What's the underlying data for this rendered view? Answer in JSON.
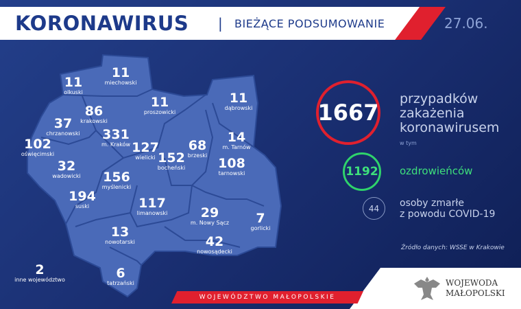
{
  "header": {
    "title": "KORONAWIRUS",
    "separator": "|",
    "subtitle": "BIEŻĄCE PODSUMOWANIE",
    "date": "27.06."
  },
  "districts": [
    {
      "name": "olkuski",
      "value": "11"
    },
    {
      "name": "miechowski",
      "value": "11"
    },
    {
      "name": "proszowicki",
      "value": "11"
    },
    {
      "name": "dąbrowski",
      "value": "11"
    },
    {
      "name": "krakowski",
      "value": "86"
    },
    {
      "name": "chrzanowski",
      "value": "37"
    },
    {
      "name": "m. Kraków",
      "value": "331"
    },
    {
      "name": "oświęcimski",
      "value": "102"
    },
    {
      "name": "wielicki",
      "value": "127"
    },
    {
      "name": "brzeski",
      "value": "68"
    },
    {
      "name": "m. Tarnów",
      "value": "14"
    },
    {
      "name": "bocheński",
      "value": "152"
    },
    {
      "name": "tarnowski",
      "value": "108"
    },
    {
      "name": "wadowicki",
      "value": "32"
    },
    {
      "name": "myślenicki",
      "value": "156"
    },
    {
      "name": "suski",
      "value": "194"
    },
    {
      "name": "limanowski",
      "value": "117"
    },
    {
      "name": "m. Nowy Sącz",
      "value": "29"
    },
    {
      "name": "gorlicki",
      "value": "7"
    },
    {
      "name": "nowotarski",
      "value": "13"
    },
    {
      "name": "nowosądecki",
      "value": "42"
    },
    {
      "name": "tatrzański",
      "value": "6"
    },
    {
      "name": "inne województwo",
      "value": "2"
    }
  ],
  "stats": {
    "cases": "1667",
    "cases_label": "przypadków zakażenia koronawirusem",
    "including": "w tym",
    "recovered": "1192",
    "recovered_label": "ozdrowieńców",
    "deaths": "44",
    "deaths_label_1": "osoby zmarłe",
    "deaths_label_2": "z powodu COVID-19",
    "source": "Źródło danych: WSSE w Krakowie"
  },
  "footer": {
    "region": "WOJEWÓDZTWO MAŁOPOLSKIE",
    "logo_text_1": "WOJEWODA",
    "logo_text_2": "MAŁOPOLSKI"
  },
  "colors": {
    "background": "#1a2f72",
    "map": "#4a6ab8",
    "cases": "#e0202e",
    "recovered": "#2fd36b"
  }
}
